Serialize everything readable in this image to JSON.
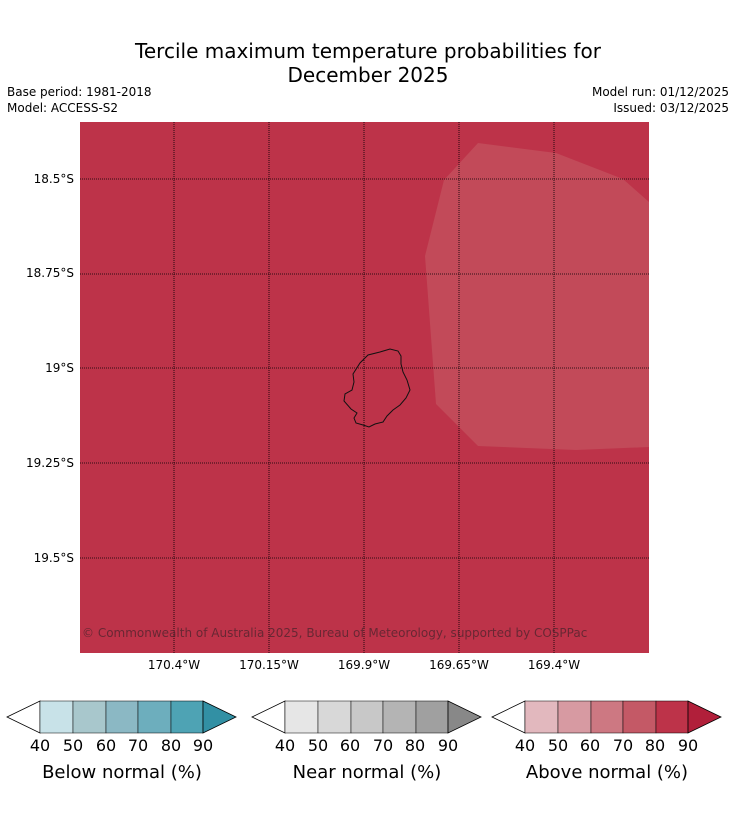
{
  "title_line1": "Tercile maximum temperature probabilities for",
  "title_line2": "December 2025",
  "base_period": "Base period: 1981-2018",
  "model": "Model: ACCESS-S2",
  "model_run": "Model run: 01/12/2025",
  "issued": "Issued: 03/12/2025",
  "lat_labels": [
    "18.5°S",
    "18.75°S",
    "19°S",
    "19.25°S",
    "19.5°S"
  ],
  "lon_labels": [
    "170.4°W",
    "170.15°W",
    "169.9°W",
    "169.65°W",
    "169.4°W"
  ],
  "copyright": "© Commonwealth of Australia 2025, Bureau of Meteorology, supported by COSPPac",
  "colors": {
    "map_fill": "#bd3349",
    "map_light_patch": "#c24a59"
  },
  "colorbars": [
    {
      "title": "Below normal (%)",
      "ticks": [
        "40",
        "50",
        "60",
        "70",
        "80",
        "90"
      ],
      "colors": [
        "#c8e2e8",
        "#a8c7cc",
        "#8bb8c4",
        "#6daebd",
        "#4ea3b4",
        "#3290a4"
      ]
    },
    {
      "title": "Near normal (%)",
      "ticks": [
        "40",
        "50",
        "60",
        "70",
        "80",
        "90"
      ],
      "colors": [
        "#e6e6e6",
        "#d8d8d8",
        "#c8c8c8",
        "#b4b4b4",
        "#a0a0a0",
        "#888888"
      ]
    },
    {
      "title": "Above normal (%)",
      "ticks": [
        "40",
        "50",
        "60",
        "70",
        "80",
        "90"
      ],
      "colors": [
        "#e2b8be",
        "#d79aa2",
        "#cd7882",
        "#c45966",
        "#bd3349",
        "#b11f3a"
      ]
    }
  ]
}
